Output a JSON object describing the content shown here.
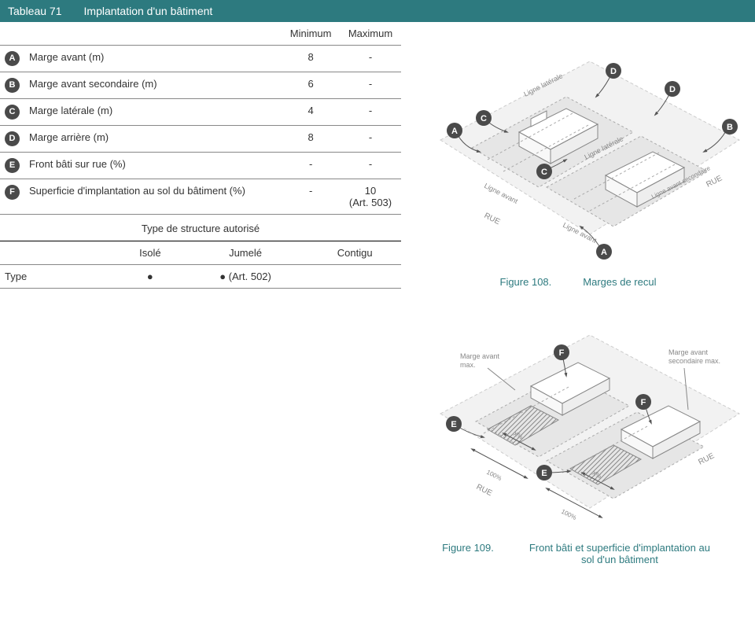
{
  "header": {
    "table_num": "Tableau 71",
    "title": "Implantation d'un bâtiment",
    "bg_color": "#2d7a7f",
    "text_color": "#ffffff"
  },
  "margins_table": {
    "columns": [
      "",
      "",
      "Minimum",
      "Maximum"
    ],
    "rows": [
      {
        "badge": "A",
        "label": "Marge avant (m)",
        "min": "8",
        "max": "-"
      },
      {
        "badge": "B",
        "label": "Marge avant secondaire (m)",
        "min": "6",
        "max": "-"
      },
      {
        "badge": "C",
        "label": "Marge latérale (m)",
        "min": "4",
        "max": "-"
      },
      {
        "badge": "D",
        "label": "Marge arrière (m)",
        "min": "8",
        "max": "-"
      },
      {
        "badge": "E",
        "label": "Front bâti sur rue (%)",
        "min": "-",
        "max": "-"
      },
      {
        "badge": "F",
        "label": "Superficie d'implantation au sol du bâtiment (%)",
        "min": "-",
        "max": "10\n(Art. 503)"
      }
    ],
    "badge_bg": "#4a4a4a",
    "badge_fg": "#ffffff",
    "border_color": "#888888"
  },
  "structure_section": {
    "title": "Type de structure autorisé",
    "columns": [
      "",
      "Isolé",
      "Jumelé",
      "Contigu"
    ],
    "row": {
      "label": "Type",
      "isole": "●",
      "jumele": "● (Art. 502)",
      "contigu": ""
    }
  },
  "figure108": {
    "label": "Figure 108.",
    "title": "Marges de recul",
    "caption_color": "#2d7a7f",
    "labels": {
      "ligne_laterale": "Ligne latérale",
      "ligne_avant": "Ligne avant",
      "ligne_avant_sec": "Ligne avant secondaire",
      "rue": "RUE"
    },
    "badges": [
      "A",
      "B",
      "C",
      "D"
    ],
    "building_fill": "#ffffff",
    "ground_fill": "#e8e8e8",
    "lot_fill": "#f5f5f5",
    "line_color": "#888888",
    "dash_color": "#aaaaaa",
    "text_color": "#888888"
  },
  "figure109": {
    "label": "Figure 109.",
    "title": "Front bâti et superficie d'implantation au sol d'un bâtiment",
    "caption_color": "#2d7a7f",
    "labels": {
      "marge_avant_max": "Marge avant max.",
      "marge_avant_sec_max": "Marge avant secondaire max.",
      "rue": "RUE",
      "pct100": "100%",
      "pctX": "X%"
    },
    "badges": [
      "E",
      "F"
    ],
    "building_fill": "#ffffff",
    "ground_fill": "#e8e8e8",
    "hatch_color": "#888888",
    "line_color": "#888888",
    "dash_color": "#aaaaaa",
    "text_color": "#888888"
  }
}
